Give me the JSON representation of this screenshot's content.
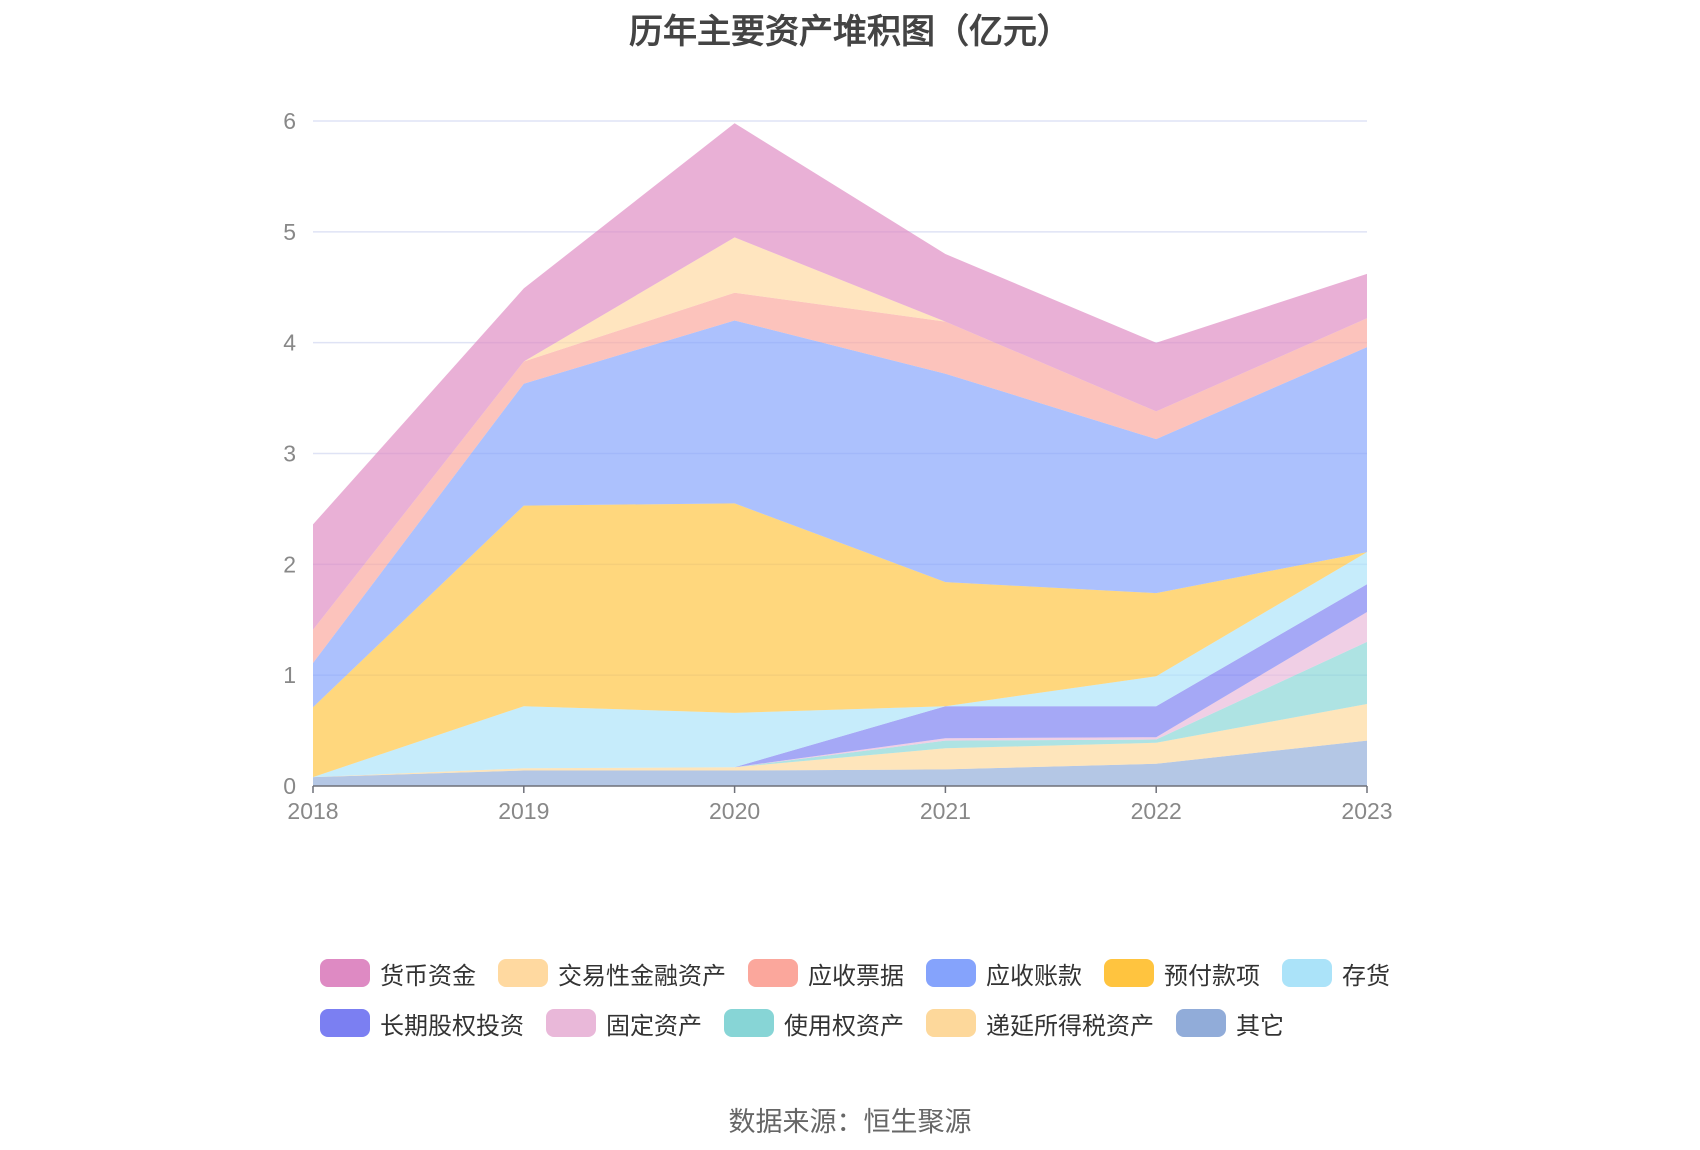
{
  "title": "历年主要资产堆积图（亿元）",
  "source": "数据来源：恒生聚源",
  "legend_rows": [
    [
      "货币资金",
      "交易性金融资产",
      "应收票据",
      "应收账款",
      "预付款项",
      "存货"
    ],
    [
      "长期股权投资",
      "固定资产",
      "使用权资产",
      "递延所得税资产",
      "其它"
    ]
  ],
  "chart_data": {
    "type": "area",
    "stacked": true,
    "title": "历年主要资产堆积图（亿元）",
    "x": [
      "2018",
      "2019",
      "2020",
      "2021",
      "2022",
      "2023"
    ],
    "ylim": [
      0,
      6
    ],
    "yticks": [
      0,
      1,
      2,
      3,
      4,
      5,
      6
    ],
    "grid": true,
    "legend_position": "bottom",
    "series": [
      {
        "name": "其它",
        "color": "#91acd9",
        "values": [
          0.08,
          0.14,
          0.14,
          0.15,
          0.2,
          0.41
        ]
      },
      {
        "name": "递延所得税资产",
        "color": "#fdd89b",
        "values": [
          0.0,
          0.02,
          0.03,
          0.19,
          0.19,
          0.33
        ]
      },
      {
        "name": "使用权资产",
        "color": "#87d5d6",
        "values": [
          0.0,
          0.0,
          0.0,
          0.07,
          0.03,
          0.56
        ]
      },
      {
        "name": "固定资产",
        "color": "#e9b8d9",
        "values": [
          0.0,
          0.0,
          0.0,
          0.02,
          0.02,
          0.27
        ]
      },
      {
        "name": "长期股权投资",
        "color": "#7b7ff2",
        "values": [
          0.0,
          0.0,
          0.0,
          0.29,
          0.28,
          0.25
        ]
      },
      {
        "name": "存货",
        "color": "#abe3f9",
        "values": [
          0.0,
          0.56,
          0.49,
          0.0,
          0.27,
          0.29
        ]
      },
      {
        "name": "预付款项",
        "color": "#ffc43f",
        "values": [
          0.63,
          1.81,
          1.89,
          1.12,
          0.75,
          0.0
        ]
      },
      {
        "name": "应收账款",
        "color": "#85a3fc",
        "values": [
          0.4,
          1.1,
          1.65,
          1.88,
          1.39,
          1.85
        ]
      },
      {
        "name": "应收票据",
        "color": "#fba79c",
        "values": [
          0.3,
          0.2,
          0.25,
          0.47,
          0.25,
          0.26
        ]
      },
      {
        "name": "交易性金融资产",
        "color": "#ffd9a0",
        "values": [
          0.0,
          0.0,
          0.5,
          0.0,
          0.0,
          0.0
        ]
      },
      {
        "name": "货币资金",
        "color": "#de8ac3",
        "values": [
          0.95,
          0.66,
          1.03,
          0.61,
          0.62,
          0.4
        ]
      }
    ]
  }
}
